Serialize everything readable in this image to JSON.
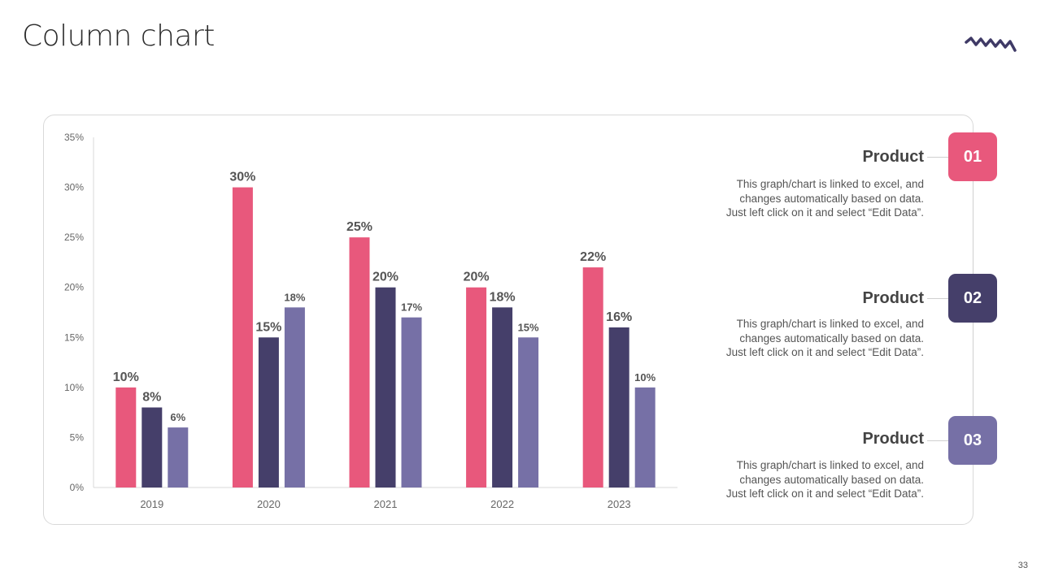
{
  "title": "Column chart",
  "page_number": "33",
  "colors": {
    "product1": "#e8587c",
    "product2": "#453f6a",
    "product3": "#7670a6",
    "squiggle": "#3f3a66"
  },
  "chart_data": {
    "type": "bar",
    "categories": [
      "2019",
      "2020",
      "2021",
      "2022",
      "2023"
    ],
    "series": [
      {
        "name": "Product 01",
        "values": [
          10,
          30,
          25,
          20,
          22
        ],
        "labels": [
          "10%",
          "30%",
          "25%",
          "20%",
          "22%"
        ]
      },
      {
        "name": "Product 02",
        "values": [
          8,
          15,
          20,
          18,
          16
        ],
        "labels": [
          "8%",
          "15%",
          "20%",
          "18%",
          "16%"
        ]
      },
      {
        "name": "Product 03",
        "values": [
          6,
          18,
          17,
          15,
          10
        ],
        "labels": [
          "6%",
          "18%",
          "17%",
          "15%",
          "10%"
        ]
      }
    ],
    "y_ticks": [
      "0%",
      "5%",
      "10%",
      "15%",
      "20%",
      "25%",
      "30%",
      "35%"
    ],
    "ylim": [
      0,
      35
    ],
    "title": "",
    "xlabel": "",
    "ylabel": "",
    "legend": "none"
  },
  "products": [
    {
      "number": "01",
      "title": "Product",
      "lines": [
        "This graph/chart is linked to excel, and",
        "changes automatically based on data.",
        "Just left click on it and select “Edit Data”."
      ]
    },
    {
      "number": "02",
      "title": "Product",
      "lines": [
        "This graph/chart is linked to excel, and",
        "changes automatically based on data.",
        "Just left click on it and select “Edit Data”."
      ]
    },
    {
      "number": "03",
      "title": "Product",
      "lines": [
        "This graph/chart is linked to excel, and",
        "changes automatically based on data.",
        "Just left click on it and select “Edit Data”."
      ]
    }
  ]
}
